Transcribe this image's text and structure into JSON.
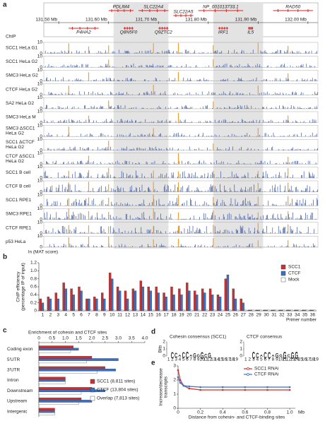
{
  "panel_labels": [
    "a",
    "b",
    "c",
    "d",
    "e"
  ],
  "panel_a": {
    "row_labels": [
      "Ensembl gene position",
      "ChIP"
    ],
    "xlim": [
      131.47,
      132.02
    ],
    "coordinate_ticks": [
      {
        "value": 131.5,
        "label": "131.50 Mb"
      },
      {
        "value": 131.6,
        "label": "131.60 Mb"
      },
      {
        "value": 131.7,
        "label": "131.70 Mb"
      },
      {
        "value": 131.8,
        "label": "131.80 Mb"
      },
      {
        "value": 131.9,
        "label": "131.90 Mb"
      },
      {
        "value": 132.0,
        "label": "132.00 Mb"
      }
    ],
    "shaded": [
      [
        131.61,
        131.72
      ],
      [
        131.81,
        131.91
      ]
    ],
    "genes": [
      {
        "name": "PDLIM4",
        "start": 131.6,
        "end": 131.65,
        "row": 0
      },
      {
        "name": "SLC22A4",
        "start": 131.66,
        "end": 131.72,
        "row": 0
      },
      {
        "name": "NP_001013733.1",
        "start": 131.78,
        "end": 131.87,
        "row": 0
      },
      {
        "name": "RAD50",
        "start": 131.93,
        "end": 132.01,
        "row": 0
      },
      {
        "name": "SLC22A5",
        "start": 131.73,
        "end": 131.77,
        "row": 1
      },
      {
        "name": "P4HA2",
        "start": 131.52,
        "end": 131.58,
        "row": 2
      },
      {
        "name": "Q8N5F0",
        "start": 131.63,
        "end": 131.65,
        "row": 2
      },
      {
        "name": "Q9ZTC2",
        "start": 131.7,
        "end": 131.72,
        "row": 2
      },
      {
        "name": "IRF1",
        "start": 131.82,
        "end": 131.84,
        "row": 2
      },
      {
        "name": "IL5",
        "start": 131.88,
        "end": 131.89,
        "row": 2
      }
    ],
    "track_yticks": [
      0,
      10
    ],
    "tracks": [
      {
        "name": [
          "SCC1 HeLa G1"
        ]
      },
      {
        "name": [
          "SCC1 HeLa G2"
        ]
      },
      {
        "name": [
          "SMC3 HeLa G2"
        ]
      },
      {
        "name": [
          "CTCF HeLa G2"
        ]
      },
      {
        "name": [
          "SA2 HeLa G2"
        ]
      },
      {
        "name": [
          "SMC3 HeLa M"
        ]
      },
      {
        "name": [
          "SMC3 ΔSCC1",
          "HeLa G2"
        ]
      },
      {
        "name": [
          "SCC1 ΔCTCF",
          "HeLa G2"
        ]
      },
      {
        "name": [
          "CTCF ΔSCC1",
          "HeLa G2"
        ]
      },
      {
        "name": [
          "SCC1 B cell"
        ]
      },
      {
        "name": [
          "CTCF B cell"
        ]
      },
      {
        "name": [
          "SCC1 RPE1"
        ]
      },
      {
        "name": [
          "SMC3 RPE1"
        ]
      },
      {
        "name": [
          "CTCF RPE1"
        ]
      },
      {
        "name": [
          "p53 HeLa"
        ]
      }
    ],
    "highlights": [
      131.52,
      131.56,
      131.6,
      131.69,
      131.74,
      131.81,
      131.9,
      131.96
    ],
    "footer": "ln (MAT score)"
  },
  "panel_d": {
    "ylabel": "Bits",
    "yticks": [
      0,
      1,
      2
    ],
    "logos": [
      {
        "title": "Cohesin consensus (SCC1)",
        "positions": [
          "1",
          "2",
          "3",
          "4",
          "5",
          "6",
          "7",
          "8",
          "9",
          "10",
          "11",
          "12",
          "13",
          "14",
          "15",
          "16",
          "17",
          "18",
          "19"
        ],
        "letters": [
          {
            "pos": 2,
            "letter": "C",
            "bits": 1.4
          },
          {
            "pos": 3,
            "letter": "C",
            "bits": 1.1
          },
          {
            "pos": 4,
            "letter": "A",
            "bits": 0.5
          },
          {
            "pos": 5,
            "letter": "C",
            "bits": 1.3
          },
          {
            "pos": 6,
            "letter": "C",
            "bits": 1.5
          },
          {
            "pos": 7,
            "letter": "A",
            "bits": 0.5
          },
          {
            "pos": 8,
            "letter": "G",
            "bits": 1.0
          },
          {
            "pos": 9,
            "letter": "G",
            "bits": 0.6
          },
          {
            "pos": 10,
            "letter": "G",
            "bits": 1.6
          },
          {
            "pos": 11,
            "letter": "C",
            "bits": 0.8
          },
          {
            "pos": 12,
            "letter": "G",
            "bits": 1.1
          }
        ]
      },
      {
        "title": "CTCF consensus",
        "positions": [
          "1",
          "2",
          "3",
          "4",
          "5",
          "6",
          "7",
          "8",
          "9",
          "10",
          "11",
          "12",
          "13",
          "14",
          "15",
          "16",
          "17",
          "18",
          "19"
        ],
        "letters": [
          {
            "pos": 3,
            "letter": "C",
            "bits": 1.7
          },
          {
            "pos": 4,
            "letter": "C",
            "bits": 1.2
          },
          {
            "pos": 5,
            "letter": "A",
            "bits": 0.5
          },
          {
            "pos": 6,
            "letter": "C",
            "bits": 1.4
          },
          {
            "pos": 7,
            "letter": "C",
            "bits": 1.6
          },
          {
            "pos": 8,
            "letter": "A",
            "bits": 0.5
          },
          {
            "pos": 9,
            "letter": "G",
            "bits": 1.0
          },
          {
            "pos": 10,
            "letter": "G",
            "bits": 0.6
          },
          {
            "pos": 11,
            "letter": "G",
            "bits": 1.7
          },
          {
            "pos": 12,
            "letter": "C",
            "bits": 0.6
          },
          {
            "pos": 13,
            "letter": "G",
            "bits": 1.6
          },
          {
            "pos": 14,
            "letter": "G",
            "bits": 1.7
          }
        ]
      }
    ]
  },
  "chart_data": [
    {
      "type": "bar",
      "ylabel": [
        "ChIP efficiency",
        "(percentage IP of input)"
      ],
      "xlabel": "Primer number",
      "categories": [
        "1",
        "2",
        "3",
        "4",
        "5",
        "6",
        "7",
        "8",
        "9",
        "10",
        "11",
        "12",
        "13",
        "14",
        "15",
        "16",
        "17",
        "18",
        "19",
        "20",
        "21",
        "22",
        "23",
        "24",
        "25",
        "26",
        "27",
        "28",
        "29",
        "30",
        "31",
        "32",
        "33",
        "34",
        "35",
        "36"
      ],
      "series": [
        {
          "name": "SCC1",
          "color": "#cc2f2f",
          "values": [
            0.3,
            0.35,
            0.45,
            0.7,
            0.55,
            0.6,
            0.3,
            0.35,
            0.45,
            0.95,
            0.6,
            0.5,
            0.55,
            0.75,
            0.6,
            0.6,
            0.45,
            0.6,
            0.55,
            0.7,
            0.5,
            0.55,
            0.55,
            0.4,
            0.8,
            0.55,
            0.3,
            0.02,
            0.02,
            0.02,
            0.02,
            0.02,
            0.02,
            0.02,
            0.02,
            0.02
          ]
        },
        {
          "name": "CTCF",
          "color": "#3a6fc4",
          "values": [
            0.2,
            0.3,
            0.3,
            0.55,
            0.4,
            0.5,
            0.3,
            0.3,
            0.3,
            0.8,
            0.5,
            0.3,
            0.5,
            0.6,
            0.5,
            0.45,
            0.35,
            0.4,
            0.4,
            0.5,
            0.4,
            0.45,
            0.4,
            0.35,
            0.9,
            0.3,
            0.2,
            0.02,
            0.02,
            0.02,
            0.02,
            0.02,
            0.02,
            0.02,
            0.02,
            0.02
          ]
        },
        {
          "name": "Mock",
          "color": "#ffffff",
          "values": [
            0.02,
            0.02,
            0.02,
            0.02,
            0.02,
            0.02,
            0.02,
            0.02,
            0.02,
            0.02,
            0.02,
            0.02,
            0.02,
            0.02,
            0.02,
            0.02,
            0.02,
            0.02,
            0.02,
            0.02,
            0.02,
            0.02,
            0.02,
            0.02,
            0.02,
            0.02,
            0.02,
            0.02,
            0.02,
            0.02,
            0.02,
            0.02,
            0.02,
            0.02,
            0.02,
            0.02
          ]
        }
      ],
      "ylim": [
        0,
        1.2
      ],
      "yticks": [
        {
          "value": 0,
          "label": "0"
        },
        0.2,
        0.4,
        0.6,
        0.8,
        {
          "value": 1,
          "label": "1.0"
        },
        1.2
      ]
    },
    {
      "type": "barh",
      "title": "Enrichment of cohesin and CTCF sites",
      "categories": [
        "Coding exon",
        "5′UTR",
        "3′UTR",
        "Intron",
        "Downstream",
        "Upstream",
        "Intergenic"
      ],
      "series": [
        {
          "name": "SCC1 (8,811 sites)",
          "color": "#cc2f2f",
          "values": [
            1.3,
            2.0,
            2.5,
            1.0,
            2.0,
            1.6,
            0.6
          ]
        },
        {
          "name": "CTCF (13,804 sites)",
          "color": "#3a6fc4",
          "values": [
            1.5,
            3.0,
            2.9,
            1.0,
            2.5,
            2.0,
            0.6
          ]
        },
        {
          "name": "Overlap (7,813 sites)",
          "color": "#ffffff",
          "values": [
            1.2,
            1.8,
            2.2,
            1.0,
            1.6,
            1.5,
            0.6
          ]
        }
      ],
      "xlim": [
        0,
        4
      ],
      "xticks": [
        0,
        0.5,
        {
          "value": 1,
          "label": "1.0"
        },
        1.5,
        {
          "value": 2,
          "label": "2.0"
        },
        2.5,
        {
          "value": 3,
          "label": "3.0"
        },
        3.5,
        {
          "value": 4,
          "label": "4.0"
        }
      ]
    },
    {
      "type": "line",
      "ylabel": [
        "Increase/decrease",
        "transcripts"
      ],
      "xlabel": "Distance from cohesin- and CTCF-binding sites",
      "xunit": "Mb",
      "x": [
        0,
        0.02,
        0.05,
        0.1,
        0.2,
        0.4,
        0.6,
        0.8,
        1.0
      ],
      "series": [
        {
          "name": "SCC1 RNAi",
          "color": "#cc2f2f",
          "values": [
            2.7,
            2.0,
            1.6,
            1.4,
            1.3,
            1.3,
            1.3,
            1.3,
            1.3
          ]
        },
        {
          "name": "CTCF RNAi",
          "color": "#3a6fc4",
          "values": [
            2.2,
            1.8,
            1.6,
            1.55,
            1.5,
            1.5,
            1.5,
            1.5,
            1.5
          ]
        }
      ],
      "xlim": [
        0,
        1.05
      ],
      "ylim": [
        0,
        3
      ],
      "xticks": [
        0,
        0.2,
        0.4,
        0.6,
        0.8,
        {
          "value": 1,
          "label": "1.0"
        }
      ],
      "yticks": [
        0,
        1,
        2,
        3
      ]
    }
  ]
}
